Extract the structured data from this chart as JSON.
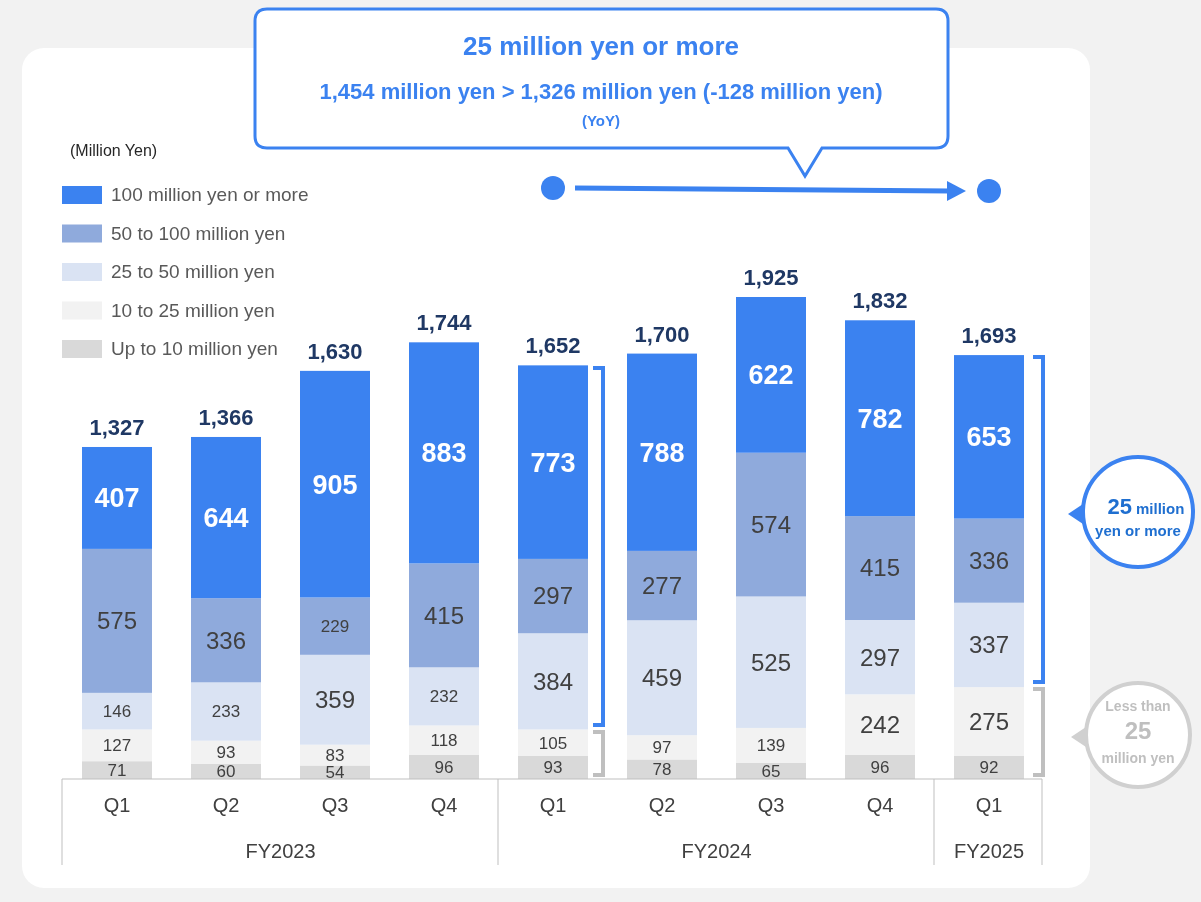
{
  "chart_data": {
    "type": "bar",
    "stacked": true,
    "legend": "top left",
    "data_labels": true,
    "categories": [
      "Q1",
      "Q2",
      "Q3",
      "Q4",
      "Q1",
      "Q2",
      "Q3",
      "Q4",
      "Q1"
    ],
    "series": [
      {
        "name": "Up to 10 million yen",
        "color": "#d9d9d9",
        "values": [
          71,
          60,
          54,
          96,
          93,
          78,
          65,
          96,
          92
        ]
      },
      {
        "name": "10 to 25 million yen",
        "color": "#f2f2f2",
        "values": [
          127,
          93,
          83,
          118,
          105,
          97,
          139,
          242,
          275
        ]
      },
      {
        "name": "25 to 50 million yen",
        "color": "#dae3f3",
        "values": [
          146,
          233,
          359,
          232,
          384,
          459,
          525,
          297,
          337
        ]
      },
      {
        "name": "50 to 100 million yen",
        "color": "#8faadc",
        "values": [
          575,
          336,
          229,
          415,
          297,
          277,
          574,
          415,
          336
        ]
      },
      {
        "name": "100 million yen or more",
        "color": "#3b82f0",
        "values": [
          407,
          644,
          905,
          883,
          773,
          788,
          622,
          782,
          653
        ]
      }
    ],
    "totals": [
      "1,327",
      "1,366",
      "1,630",
      "1,744",
      "1,652",
      "1,700",
      "1,925",
      "1,832",
      "1,693"
    ],
    "annotations": [
      "25 million yen or more",
      "1,454 million yen > 1,326 million yen (-128 million yen)",
      "(YoY)",
      "25 million yen or more",
      "Less than 25 million yen",
      "FY2023",
      "FY2024",
      "FY2025",
      "(Million Yen)"
    ]
  }
}
